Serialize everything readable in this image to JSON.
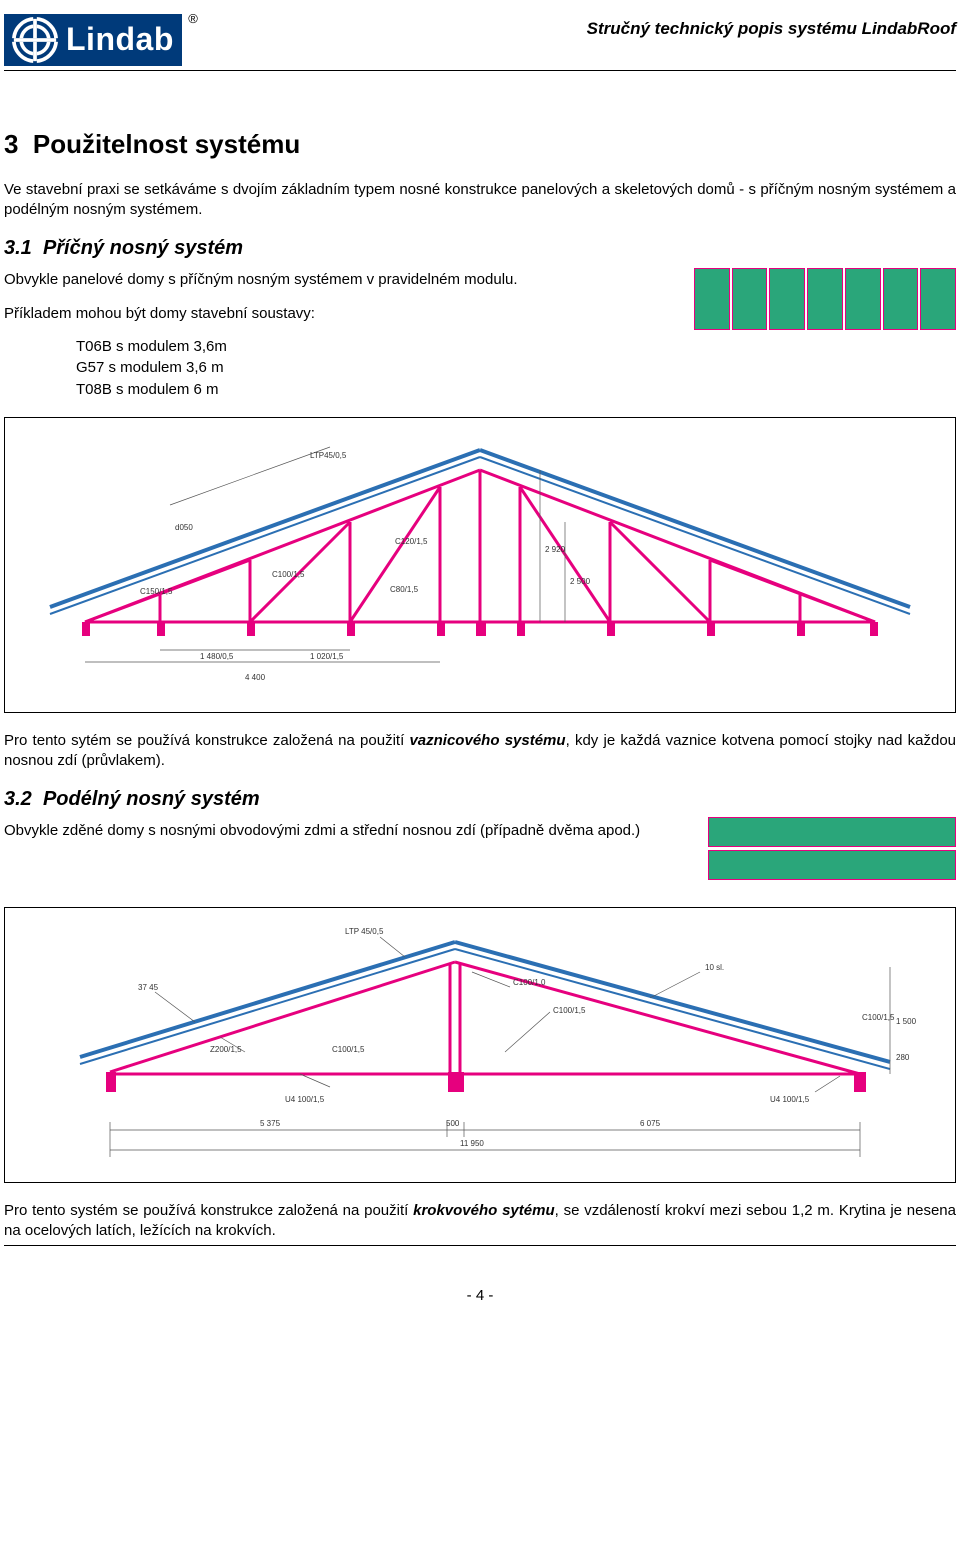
{
  "header": {
    "logo_text": "Lindab",
    "doc_title": "Stručný technický popis systému LindabRoof"
  },
  "section": {
    "num": "3",
    "title": "Použitelnost systému",
    "intro": "Ve stavební praxi se setkáváme s dvojím základním typem nosné konstrukce panelových a skeletových domů - s příčným nosným systémem a podélným nosným systémem."
  },
  "sub31": {
    "num": "3.1",
    "title": "Příčný nosný systém",
    "p1": "Obvykle panelové domy s příčným nosným systémem v pravidelném modulu.",
    "p2": "Příkladem mohou být domy stavební soustavy:",
    "list": [
      "T06B s modulem 3,6m",
      "G57 s modulem 3,6 m",
      "T08B s modulem 6 m"
    ],
    "p3a": "Pro tento sytém se používá konstrukce založená na použití ",
    "p3em": "vaznicového systému",
    "p3b": ", kdy je každá vaznice kotvena pomocí stojky nad každou nosnou zdí (průvlakem).",
    "panel_diagram": {
      "count": 7,
      "fill": "#2aa67a",
      "border": "#e6007e"
    },
    "truss_diagram": {
      "roof_color": "#2b6fb3",
      "member_color": "#e6007e",
      "labels": [
        "LTP45/0,5",
        "C120/1,5",
        "C100/1,5",
        "C150/1,5",
        "C80/1,5",
        "2 920",
        "2 500",
        "1 480/0,5",
        "1 020/1,5",
        "4 400"
      ],
      "base_width": 4400
    }
  },
  "sub32": {
    "num": "3.2",
    "title": "Podélný nosný systém",
    "p1": "Obvykle zděné domy s nosnými obvodovými zdmi a střední nosnou zdí (případně dvěma apod.)",
    "panel_diagram": {
      "count": 2,
      "fill": "#2aa67a",
      "border": "#e6007e"
    },
    "truss_diagram": {
      "roof_color": "#2b6fb3",
      "member_color": "#e6007e",
      "labels": [
        "LTP 45/0,5",
        "37 45",
        "10 sl.",
        "Z200/1,5",
        "C100/1,5",
        "C100/1,0",
        "C100/1,5",
        "U4 100/1,5",
        "U4 100/1,5",
        "5 375",
        "500",
        "6 075",
        "11 950",
        "1 500",
        "280"
      ]
    },
    "p2a": "Pro tento systém se používá konstrukce založená na použití ",
    "p2em": "krokvového sytému",
    "p2b": ", se vzdáleností krokví mezi sebou 1,2 m. Krytina je nesena na ocelových latích, ležících na krokvích."
  },
  "footer": {
    "page": "- 4 -"
  }
}
